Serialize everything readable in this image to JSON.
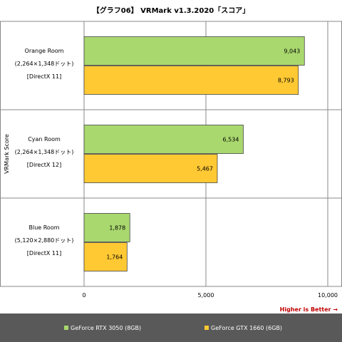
{
  "chart_data": {
    "type": "bar",
    "orientation": "horizontal",
    "title": "【グラフ06】 VRMark v1.3.2020「スコア」",
    "ylabel": "VRMark Score",
    "xlim": [
      0,
      10000
    ],
    "x_ticks": [
      "0",
      "5,000",
      "10,000"
    ],
    "grid": true,
    "legend_position": "bottom",
    "note": "Higher is Better →",
    "categories": [
      {
        "lines": [
          "Orange Room",
          "(2,264×1,348ドット)",
          "[DirectX 11]"
        ]
      },
      {
        "lines": [
          "Cyan Room",
          "(2,264×1,348ドット)",
          "[DirectX 12]"
        ]
      },
      {
        "lines": [
          "Blue Room",
          "(5,120×2,880ドット)",
          "[DirectX 11]"
        ]
      }
    ],
    "series": [
      {
        "name": "GeForce RTX 3050 (8GB)",
        "color": "#a9d86e",
        "values": [
          9043,
          6534,
          1878
        ],
        "labels": [
          "9,043",
          "6,534",
          "1,878"
        ]
      },
      {
        "name": "GeForce GTX 1660 (6GB)",
        "color": "#ffc933",
        "values": [
          8793,
          5467,
          1764
        ],
        "labels": [
          "8,793",
          "5,467",
          "1,764"
        ]
      }
    ]
  }
}
